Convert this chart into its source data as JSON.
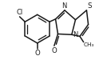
{
  "bg_color": "#ffffff",
  "line_color": "#1a1a1a",
  "line_width": 1.1,
  "figsize": [
    1.34,
    0.95
  ],
  "dpi": 100,
  "xlim": [
    -0.15,
    1.05
  ],
  "ylim": [
    -0.18,
    0.88
  ]
}
